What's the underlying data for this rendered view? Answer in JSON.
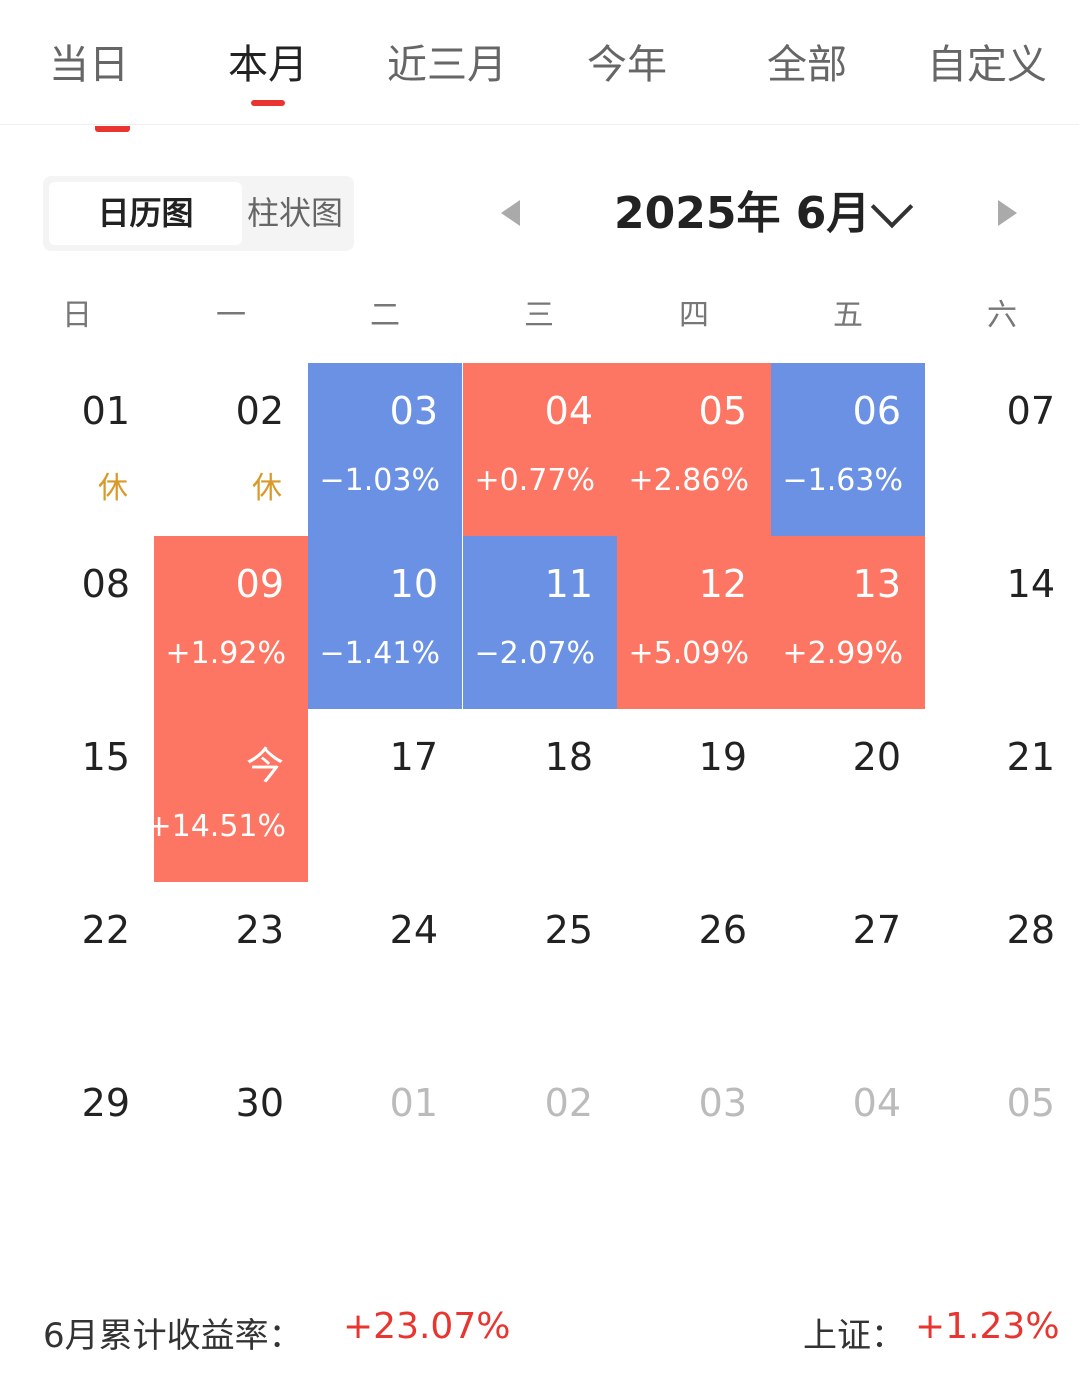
{
  "tabs": [
    {
      "label": "当日"
    },
    {
      "label": "本月",
      "active": true
    },
    {
      "label": "近三月"
    },
    {
      "label": "今年"
    },
    {
      "label": "全部"
    },
    {
      "label": "自定义"
    }
  ],
  "view_toggle": {
    "calendar": "日历图",
    "bar": "柱状图",
    "active": "calendar"
  },
  "month_nav": {
    "title": "2025年 6月",
    "prev_icon": "triangle-left-icon",
    "next_icon": "triangle-right-icon",
    "dropdown_icon": "chevron-down-icon"
  },
  "weekdays": [
    "日",
    "一",
    "二",
    "三",
    "四",
    "五",
    "六"
  ],
  "colors": {
    "up": "#fd7663",
    "down": "#6b91e5",
    "holiday": "#d99a2b",
    "accent": "#e8352f"
  },
  "weeks": [
    [
      {
        "day": "01",
        "sub": "休",
        "kind": "holiday"
      },
      {
        "day": "02",
        "sub": "休",
        "kind": "holiday"
      },
      {
        "day": "03",
        "sub": "−1.03%",
        "kind": "down"
      },
      {
        "day": "04",
        "sub": "+0.77%",
        "kind": "up"
      },
      {
        "day": "05",
        "sub": "+2.86%",
        "kind": "up"
      },
      {
        "day": "06",
        "sub": "−1.63%",
        "kind": "down"
      },
      {
        "day": "07",
        "sub": "",
        "kind": "plain"
      }
    ],
    [
      {
        "day": "08",
        "sub": "",
        "kind": "plain"
      },
      {
        "day": "09",
        "sub": "+1.92%",
        "kind": "up"
      },
      {
        "day": "10",
        "sub": "−1.41%",
        "kind": "down"
      },
      {
        "day": "11",
        "sub": "−2.07%",
        "kind": "down"
      },
      {
        "day": "12",
        "sub": "+5.09%",
        "kind": "up"
      },
      {
        "day": "13",
        "sub": "+2.99%",
        "kind": "up"
      },
      {
        "day": "14",
        "sub": "",
        "kind": "plain"
      }
    ],
    [
      {
        "day": "15",
        "sub": "",
        "kind": "plain"
      },
      {
        "day": "今",
        "sub": "+14.51%",
        "kind": "up"
      },
      {
        "day": "17",
        "sub": "",
        "kind": "plain"
      },
      {
        "day": "18",
        "sub": "",
        "kind": "plain"
      },
      {
        "day": "19",
        "sub": "",
        "kind": "plain"
      },
      {
        "day": "20",
        "sub": "",
        "kind": "plain"
      },
      {
        "day": "21",
        "sub": "",
        "kind": "plain"
      }
    ],
    [
      {
        "day": "22",
        "sub": "",
        "kind": "plain"
      },
      {
        "day": "23",
        "sub": "",
        "kind": "plain"
      },
      {
        "day": "24",
        "sub": "",
        "kind": "plain"
      },
      {
        "day": "25",
        "sub": "",
        "kind": "plain"
      },
      {
        "day": "26",
        "sub": "",
        "kind": "plain"
      },
      {
        "day": "27",
        "sub": "",
        "kind": "plain"
      },
      {
        "day": "28",
        "sub": "",
        "kind": "plain"
      }
    ],
    [
      {
        "day": "29",
        "sub": "",
        "kind": "plain"
      },
      {
        "day": "30",
        "sub": "",
        "kind": "plain"
      },
      {
        "day": "01",
        "sub": "",
        "kind": "other"
      },
      {
        "day": "02",
        "sub": "",
        "kind": "other"
      },
      {
        "day": "03",
        "sub": "",
        "kind": "other"
      },
      {
        "day": "04",
        "sub": "",
        "kind": "other"
      },
      {
        "day": "05",
        "sub": "",
        "kind": "other"
      }
    ]
  ],
  "footer": {
    "cumulative_label": "6月累计收益率：",
    "cumulative_value": "+23.07%",
    "index_label": "上证：",
    "index_value": "+1.23%"
  }
}
